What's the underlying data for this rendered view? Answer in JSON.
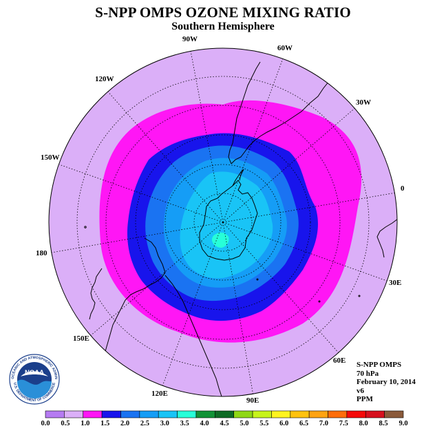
{
  "header": {
    "title": "S-NPP OMPS OZONE MIXING RATIO",
    "subtitle": "Southern Hemisphere"
  },
  "map": {
    "projection": "south-polar-stereographic",
    "longitude_labels": [
      "90W",
      "60W",
      "30W",
      "0",
      "30E",
      "60E",
      "90E",
      "120E",
      "150E",
      "180",
      "150W",
      "120W"
    ],
    "colors": {
      "background_band": "#dbaff8",
      "magenta_band": "#ff16f5",
      "dark_blue_band": "#1814ec",
      "blue_band": "#1a73f2",
      "medium_blue_band": "#159df6",
      "light_blue_band": "#19c4f6",
      "cyan_band": "#27ffd8",
      "continent_outline": "#000000",
      "graticule": "#000000"
    }
  },
  "info": {
    "instrument": "S-NPP OMPS",
    "level": "70 hPa",
    "date": "February 10, 2014",
    "version": "v6",
    "units": "PPM"
  },
  "logo": {
    "text": "NOAA",
    "ring_text": "NATIONAL OCEANIC AND ATMOSPHERIC ADMINISTRATION",
    "ring_text_bottom": "U.S. DEPARTMENT OF COMMERCE"
  },
  "colorbar": {
    "ticks": [
      "0.0",
      "0.5",
      "1.0",
      "1.5",
      "2.0",
      "2.5",
      "3.0",
      "3.5",
      "4.0",
      "4.5",
      "5.0",
      "5.5",
      "6.0",
      "6.5",
      "7.0",
      "7.5",
      "8.0",
      "8.5",
      "9.0"
    ],
    "colors": [
      "#b57bf2",
      "#dbaff8",
      "#ff16f5",
      "#1814ec",
      "#1a73f2",
      "#159df6",
      "#19c4f6",
      "#27ffd8",
      "#119236",
      "#0e6b25",
      "#8fd714",
      "#c7f41a",
      "#fff41e",
      "#ffc20e",
      "#ffa312",
      "#ff6d0a",
      "#f50a0a",
      "#d6101e",
      "#8a5a3a"
    ]
  }
}
